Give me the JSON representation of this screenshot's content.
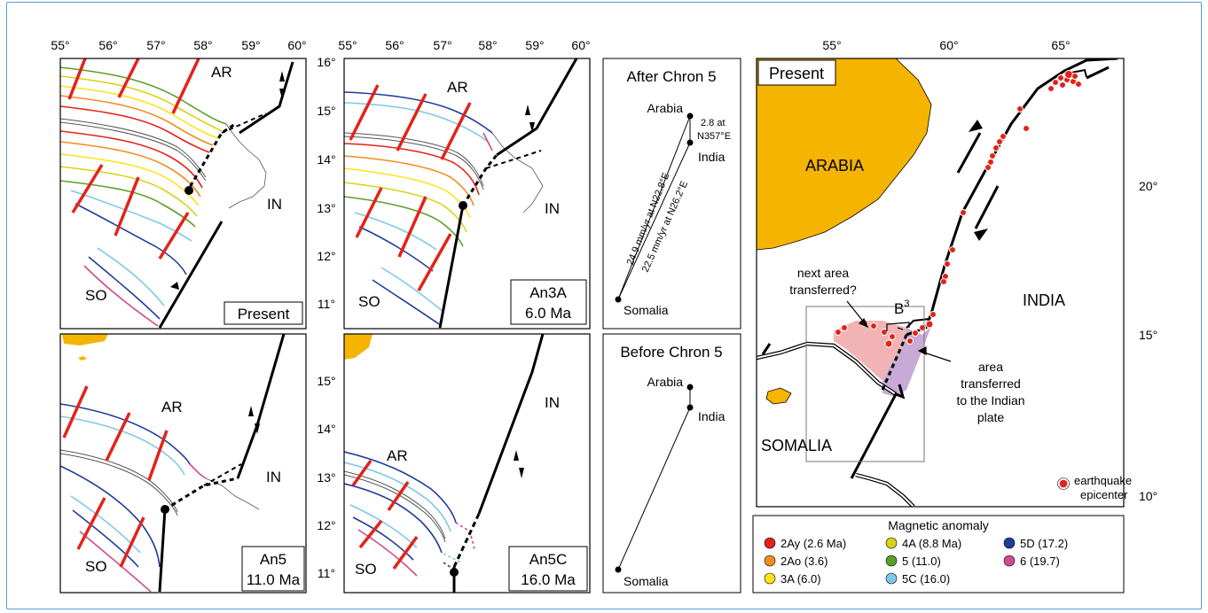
{
  "panels": {
    "present": {
      "label": "Present",
      "ar": "AR",
      "in": "IN",
      "so": "SO"
    },
    "an3a": {
      "label1": "An3A",
      "label2": "6.0 Ma",
      "ar": "AR",
      "in": "IN",
      "so": "SO"
    },
    "an5": {
      "label1": "An5",
      "label2": "11.0 Ma",
      "ar": "AR",
      "in": "IN",
      "so": "SO"
    },
    "an5c": {
      "label1": "An5C",
      "label2": "16.0 Ma",
      "ar": "AR",
      "in": "IN",
      "so": "SO"
    }
  },
  "axes_left": {
    "top_lon": [
      "55°",
      "56°",
      "57°",
      "58°",
      "59°",
      "60°"
    ],
    "top_lon2": [
      "55°",
      "56°",
      "57°",
      "58°",
      "59°",
      "60°"
    ],
    "lat_upper": [
      "16°",
      "15°",
      "14°",
      "13°",
      "12°",
      "11°"
    ],
    "lat_lower": [
      "15°",
      "14°",
      "13°",
      "12°",
      "11°"
    ]
  },
  "after_chron": {
    "title": "After Chron 5",
    "arabia": "Arabia",
    "india": "India",
    "somalia": "Somalia",
    "rate1": "2.8 at",
    "rate1b": "N357°E",
    "rate2": "24.9 mm/yr  at  N22.8°E",
    "rate3": "22.5 mm/yr  at  N26.2°E"
  },
  "before_chron": {
    "title": "Before Chron 5",
    "arabia": "Arabia",
    "india": "India",
    "somalia": "Somalia"
  },
  "map": {
    "label_present": "Present",
    "arabia": "ARABIA",
    "india": "INDIA",
    "somalia": "SOMALIA",
    "next_area": "next area",
    "next_area2": "transferred?",
    "b3": "B",
    "b3sup": "3",
    "area1": "area",
    "area2": "transferred",
    "area3": "to the Indian",
    "area4": "plate",
    "eq1": "earthquake",
    "eq2": "epicenter",
    "lon": [
      "55°",
      "60°",
      "65°"
    ],
    "lat": [
      "20°",
      "15°",
      "10°"
    ],
    "colors": {
      "land": "#f5b400",
      "pink_area": "#f1b3b3",
      "purple_area": "#c9a9d6",
      "epicenter": "#e2231a"
    }
  },
  "legend": {
    "title": "Magnetic anomaly",
    "items": [
      {
        "label": "2Ay (2.6 Ma)",
        "color": "#e2231a"
      },
      {
        "label": "4A (8.8 Ma)",
        "color": "#d8d21a"
      },
      {
        "label": "5D (17.2)",
        "color": "#1f3d99"
      },
      {
        "label": "2Ao (3.6)",
        "color": "#f28c1f"
      },
      {
        "label": "5 (11.0)",
        "color": "#5a9e2a"
      },
      {
        "label": "6 (19.7)",
        "color": "#d04a8c"
      },
      {
        "label": "3A (6.0)",
        "color": "#ffe21a"
      },
      {
        "label": "5C (16.0)",
        "color": "#7ec8e8"
      }
    ]
  }
}
